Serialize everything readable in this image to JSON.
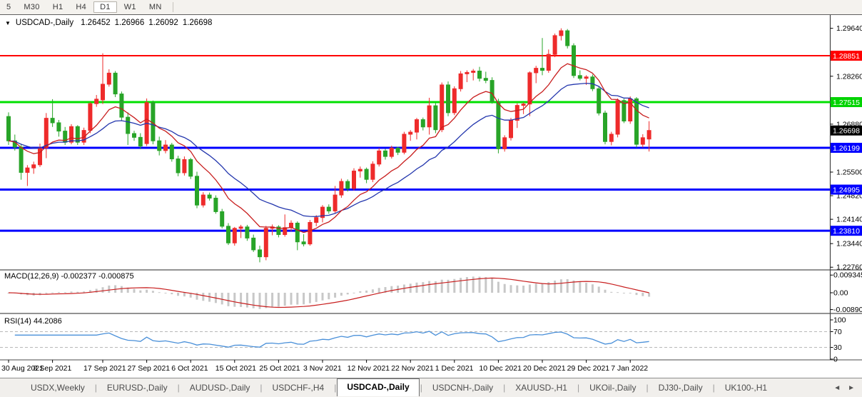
{
  "toolbar": {
    "timeframes": [
      {
        "label": "5",
        "active": false
      },
      {
        "label": "M30",
        "active": false
      },
      {
        "label": "H1",
        "active": false
      },
      {
        "label": "H4",
        "active": false
      },
      {
        "label": "D1",
        "active": true
      },
      {
        "label": "W1",
        "active": false
      },
      {
        "label": "MN",
        "active": false
      }
    ]
  },
  "symbol_header": {
    "dropdown_icon": "▼",
    "title": "USDCAD-,Daily",
    "open": "1.26452",
    "high": "1.26966",
    "low": "1.26092",
    "close": "1.26698"
  },
  "price_axis": {
    "ticks": [
      {
        "label": "1.29640",
        "price": 1.2964
      },
      {
        "label": "1.28260",
        "price": 1.2826
      },
      {
        "label": "1.26880",
        "price": 1.2688
      },
      {
        "label": "1.25500",
        "price": 1.255
      },
      {
        "label": "1.24820",
        "price": 1.2482
      },
      {
        "label": "1.24140",
        "price": 1.2414
      },
      {
        "label": "1.23440",
        "price": 1.2344
      },
      {
        "label": "1.22760",
        "price": 1.2276
      }
    ],
    "badges": [
      {
        "label": "1.28851",
        "price": 1.28851,
        "bg": "#ff0000",
        "fg": "#ffffff",
        "name": "resistance-level-badge"
      },
      {
        "label": "1.27515",
        "price": 1.27515,
        "bg": "#00d300",
        "fg": "#ffffff",
        "name": "support-level-badge"
      },
      {
        "label": "1.26698",
        "price": 1.26698,
        "bg": "#000000",
        "fg": "#ffffff",
        "name": "current-price-badge"
      },
      {
        "label": "1.26199",
        "price": 1.26199,
        "bg": "#0000ff",
        "fg": "#ffffff",
        "name": "support-level-badge"
      },
      {
        "label": "1.24995",
        "price": 1.24995,
        "bg": "#0000ff",
        "fg": "#ffffff",
        "name": "support-level-badge"
      },
      {
        "label": "1.23810",
        "price": 1.2381,
        "bg": "#0000ff",
        "fg": "#ffffff",
        "name": "support-level-badge"
      }
    ]
  },
  "indicators": {
    "macd": {
      "label": "MACD(12,26,9) -0.002377 -0.000875",
      "axis": [
        {
          "label": "0.009345",
          "value": 0.009345
        },
        {
          "label": "0.00",
          "value": 0.0
        },
        {
          "label": "-0.008902",
          "value": -0.008902
        }
      ]
    },
    "rsi": {
      "label": "RSI(14) 44.2086",
      "axis": [
        {
          "label": "100",
          "value": 100
        },
        {
          "label": "70",
          "value": 70
        },
        {
          "label": "30",
          "value": 30
        },
        {
          "label": "0",
          "value": 0
        }
      ],
      "levels": [
        70,
        30
      ]
    }
  },
  "chart_data": {
    "type": "candlestick",
    "symbol": "USDCAD-",
    "timeframe": "Daily",
    "colors": {
      "bull_candle": "#ee2b2b",
      "bear_candle": "#28a428",
      "ma_fast": "#c81e1e",
      "ma_slow": "#2336ad",
      "macd_histogram": "#c8c8c8",
      "macd_signal": "#c81e1e",
      "rsi_line": "#4a90d9",
      "level_red": "#ff0000",
      "level_green": "#00e000",
      "level_blue": "#0000ff"
    },
    "hlines": [
      {
        "price": 1.28851,
        "color": "#ff0000",
        "width": 2
      },
      {
        "price": 1.27515,
        "color": "#00e000",
        "width": 3
      },
      {
        "price": 1.26199,
        "color": "#0000ff",
        "width": 3
      },
      {
        "price": 1.24995,
        "color": "#0000ff",
        "width": 3
      },
      {
        "price": 1.2381,
        "color": "#0000ff",
        "width": 3
      }
    ],
    "date_labels": [
      {
        "label": "30 Aug 2021",
        "bar": 0
      },
      {
        "label": "8 Sep 2021",
        "bar": 7
      },
      {
        "label": "17 Sep 2021",
        "bar": 15
      },
      {
        "label": "27 Sep 2021",
        "bar": 22
      },
      {
        "label": "6 Oct 2021",
        "bar": 29
      },
      {
        "label": "15 Oct 2021",
        "bar": 36
      },
      {
        "label": "25 Oct 2021",
        "bar": 43
      },
      {
        "label": "3 Nov 2021",
        "bar": 50
      },
      {
        "label": "12 Nov 2021",
        "bar": 57
      },
      {
        "label": "22 Nov 2021",
        "bar": 64
      },
      {
        "label": "1 Dec 2021",
        "bar": 71
      },
      {
        "label": "10 Dec 2021",
        "bar": 78
      },
      {
        "label": "20 Dec 2021",
        "bar": 85
      },
      {
        "label": "29 Dec 2021",
        "bar": 92
      },
      {
        "label": "7 Jan 2022",
        "bar": 99
      }
    ],
    "candles": [
      [
        1.271,
        1.2722,
        1.2628,
        1.264
      ],
      [
        1.264,
        1.2658,
        1.2612,
        1.2622
      ],
      [
        1.2622,
        1.263,
        1.2528,
        1.2549
      ],
      [
        1.2549,
        1.257,
        1.251,
        1.2562
      ],
      [
        1.2562,
        1.258,
        1.2545,
        1.2571
      ],
      [
        1.2571,
        1.2632,
        1.2565,
        1.262
      ],
      [
        1.262,
        1.272,
        1.259,
        1.2705
      ],
      [
        1.2705,
        1.276,
        1.268,
        1.2692
      ],
      [
        1.2692,
        1.27,
        1.2652,
        1.2668
      ],
      [
        1.2668,
        1.268,
        1.2628,
        1.2636
      ],
      [
        1.2636,
        1.2688,
        1.263,
        1.2681
      ],
      [
        1.2681,
        1.2685,
        1.2628,
        1.2636
      ],
      [
        1.2636,
        1.2678,
        1.2628,
        1.267
      ],
      [
        1.267,
        1.2752,
        1.2662,
        1.2747
      ],
      [
        1.2747,
        1.2772,
        1.2738,
        1.276
      ],
      [
        1.2758,
        1.2892,
        1.2746,
        1.2803
      ],
      [
        1.2803,
        1.2846,
        1.2796,
        1.2835
      ],
      [
        1.2835,
        1.2841,
        1.2766,
        1.2775
      ],
      [
        1.2775,
        1.2782,
        1.2698,
        1.2708
      ],
      [
        1.2708,
        1.2722,
        1.2628,
        1.2661
      ],
      [
        1.2661,
        1.2669,
        1.264,
        1.265
      ],
      [
        1.265,
        1.2662,
        1.2616,
        1.2625
      ],
      [
        1.2632,
        1.2762,
        1.2625,
        1.275
      ],
      [
        1.275,
        1.2756,
        1.263,
        1.264
      ],
      [
        1.264,
        1.2652,
        1.2598,
        1.2612
      ],
      [
        1.2612,
        1.2642,
        1.2604,
        1.2628
      ],
      [
        1.2628,
        1.2634,
        1.258,
        1.2588
      ],
      [
        1.2588,
        1.2597,
        1.2538,
        1.2548
      ],
      [
        1.2548,
        1.2595,
        1.254,
        1.2586
      ],
      [
        1.2586,
        1.2591,
        1.253,
        1.2538
      ],
      [
        1.2538,
        1.2551,
        1.2446,
        1.2455
      ],
      [
        1.2455,
        1.2492,
        1.2448,
        1.2484
      ],
      [
        1.2484,
        1.2491,
        1.2468,
        1.2475
      ],
      [
        1.2475,
        1.2483,
        1.243,
        1.2436
      ],
      [
        1.2436,
        1.2444,
        1.2388,
        1.2394
      ],
      [
        1.2394,
        1.2403,
        1.234,
        1.2346
      ],
      [
        1.2346,
        1.2392,
        1.2338,
        1.2388
      ],
      [
        1.2388,
        1.2398,
        1.236,
        1.2392
      ],
      [
        1.2392,
        1.2398,
        1.2352,
        1.236
      ],
      [
        1.236,
        1.237,
        1.232,
        1.2326
      ],
      [
        1.2326,
        1.2338,
        1.229,
        1.2306
      ],
      [
        1.2306,
        1.2395,
        1.2296,
        1.2388
      ],
      [
        1.2388,
        1.2399,
        1.2368,
        1.2392
      ],
      [
        1.2392,
        1.2397,
        1.2362,
        1.237
      ],
      [
        1.237,
        1.2428,
        1.2364,
        1.239
      ],
      [
        1.239,
        1.2411,
        1.2379,
        1.2403
      ],
      [
        1.2403,
        1.2408,
        1.2325,
        1.2349
      ],
      [
        1.2349,
        1.2371,
        1.2336,
        1.2343
      ],
      [
        1.2343,
        1.2412,
        1.2338,
        1.2405
      ],
      [
        1.2405,
        1.2426,
        1.2394,
        1.2419
      ],
      [
        1.2419,
        1.2455,
        1.2405,
        1.2449
      ],
      [
        1.2449,
        1.2457,
        1.243,
        1.2438
      ],
      [
        1.2438,
        1.251,
        1.2431,
        1.2484
      ],
      [
        1.2484,
        1.2531,
        1.2476,
        1.2523
      ],
      [
        1.2523,
        1.2529,
        1.2494,
        1.2503
      ],
      [
        1.2503,
        1.2561,
        1.2497,
        1.2553
      ],
      [
        1.2553,
        1.2566,
        1.2534,
        1.2558
      ],
      [
        1.2558,
        1.2563,
        1.2518,
        1.2529
      ],
      [
        1.2529,
        1.2581,
        1.2521,
        1.2573
      ],
      [
        1.2573,
        1.2619,
        1.2566,
        1.2611
      ],
      [
        1.2611,
        1.2617,
        1.2586,
        1.2595
      ],
      [
        1.2595,
        1.2626,
        1.2589,
        1.2619
      ],
      [
        1.2619,
        1.2623,
        1.2599,
        1.2607
      ],
      [
        1.2607,
        1.2666,
        1.2601,
        1.2659
      ],
      [
        1.2659,
        1.2671,
        1.264,
        1.2665
      ],
      [
        1.2665,
        1.2706,
        1.2644,
        1.2701
      ],
      [
        1.2701,
        1.2707,
        1.267,
        1.268
      ],
      [
        1.268,
        1.2764,
        1.2658,
        1.2741
      ],
      [
        1.2741,
        1.2749,
        1.2662,
        1.2672
      ],
      [
        1.2672,
        1.2808,
        1.2665,
        1.2801
      ],
      [
        1.2801,
        1.2811,
        1.2711,
        1.2721
      ],
      [
        1.2721,
        1.2797,
        1.2714,
        1.279
      ],
      [
        1.279,
        1.2841,
        1.2782,
        1.2833
      ],
      [
        1.2833,
        1.2843,
        1.2809,
        1.2837
      ],
      [
        1.2837,
        1.2847,
        1.2814,
        1.2841
      ],
      [
        1.2841,
        1.2853,
        1.2811,
        1.282
      ],
      [
        1.282,
        1.2839,
        1.2806,
        1.2814
      ],
      [
        1.2814,
        1.2823,
        1.2747,
        1.2753
      ],
      [
        1.2753,
        1.2761,
        1.2604,
        1.2617
      ],
      [
        1.2617,
        1.2656,
        1.2609,
        1.2649
      ],
      [
        1.2649,
        1.2706,
        1.2641,
        1.2699
      ],
      [
        1.2699,
        1.2748,
        1.2677,
        1.2742
      ],
      [
        1.2742,
        1.2751,
        1.2717,
        1.2746
      ],
      [
        1.2746,
        1.284,
        1.2711,
        1.2836
      ],
      [
        1.2836,
        1.2856,
        1.2806,
        1.2849
      ],
      [
        1.2849,
        1.2936,
        1.2829,
        1.2843
      ],
      [
        1.2843,
        1.2903,
        1.2836,
        1.2889
      ],
      [
        1.2889,
        1.2949,
        1.2881,
        1.2943
      ],
      [
        1.2943,
        1.2964,
        1.2929,
        1.2957
      ],
      [
        1.2957,
        1.2962,
        1.2906,
        1.2914
      ],
      [
        1.2914,
        1.2921,
        1.2821,
        1.2828
      ],
      [
        1.2828,
        1.2843,
        1.2814,
        1.282
      ],
      [
        1.282,
        1.2829,
        1.2801,
        1.2824
      ],
      [
        1.2824,
        1.2831,
        1.2783,
        1.279
      ],
      [
        1.279,
        1.2797,
        1.2713,
        1.272
      ],
      [
        1.272,
        1.2727,
        1.263,
        1.2638
      ],
      [
        1.2638,
        1.2666,
        1.2627,
        1.2659
      ],
      [
        1.2659,
        1.2762,
        1.265,
        1.2756
      ],
      [
        1.2756,
        1.2761,
        1.2691,
        1.2697
      ],
      [
        1.2697,
        1.2768,
        1.2689,
        1.2761
      ],
      [
        1.2761,
        1.2766,
        1.2621,
        1.263
      ],
      [
        1.263,
        1.2659,
        1.2621,
        1.2649
      ],
      [
        1.26452,
        1.26966,
        1.26092,
        1.26698
      ]
    ]
  },
  "tabs": {
    "items": [
      {
        "label": "USDX,Weekly",
        "active": false
      },
      {
        "label": "EURUSD-,Daily",
        "active": false
      },
      {
        "label": "AUDUSD-,Daily",
        "active": false
      },
      {
        "label": "USDCHF-,H4",
        "active": false
      },
      {
        "label": "USDCAD-,Daily",
        "active": true
      },
      {
        "label": "USDCNH-,Daily",
        "active": false
      },
      {
        "label": "XAUUSD-,H1",
        "active": false
      },
      {
        "label": "UKOil-,Daily",
        "active": false
      },
      {
        "label": "DJ30-,Daily",
        "active": false
      },
      {
        "label": "UK100-,H1",
        "active": false
      }
    ],
    "nav_left": "◄",
    "nav_right": "►"
  }
}
